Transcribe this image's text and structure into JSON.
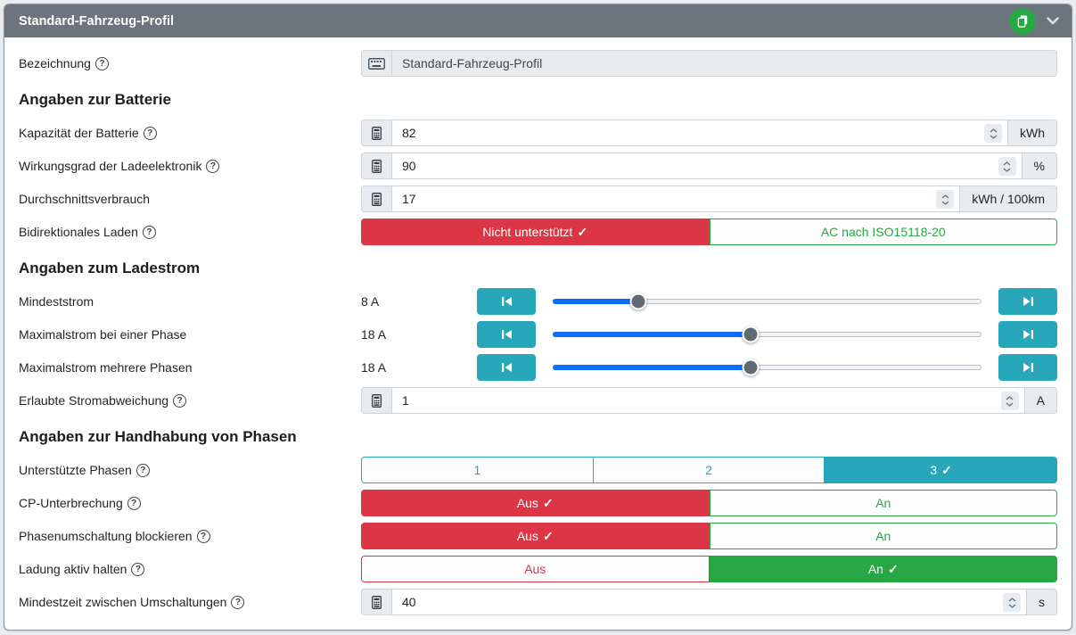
{
  "header": {
    "title": "Standard-Fahrzeug-Profil"
  },
  "glyphs": {
    "check": "✓",
    "help": "?"
  },
  "sections": {
    "batterie": "Angaben zur Batterie",
    "ladestrom": "Angaben zum Ladestrom",
    "phasen": "Angaben zur Handhabung von Phasen"
  },
  "rows": {
    "bezeichnung": {
      "label": "Bezeichnung",
      "value": "Standard-Fahrzeug-Profil"
    },
    "kapazitaet": {
      "label": "Kapazität der Batterie",
      "value": "82",
      "unit": "kWh"
    },
    "wirkungsgrad": {
      "label": "Wirkungsgrad der Ladeelektronik",
      "value": "90",
      "unit": "%"
    },
    "verbrauch": {
      "label": "Durchschnittsverbrauch",
      "value": "17",
      "unit": "kWh / 100km"
    },
    "bidi": {
      "label": "Bidirektionales Laden",
      "off_label": "Nicht unterstützt",
      "on_label": "AC nach ISO15118-20",
      "selected": "Nicht unterstützt"
    },
    "mindeststrom": {
      "label": "Mindeststrom",
      "display": "8 A",
      "value": 8,
      "min": 6,
      "max": 16
    },
    "max_eine_phase": {
      "label": "Maximalstrom bei einer Phase",
      "display": "18 A",
      "value": 18,
      "min": 6,
      "max": 32
    },
    "max_mehrere_phasen": {
      "label": "Maximalstrom mehrere Phasen",
      "display": "18 A",
      "value": 18,
      "min": 6,
      "max": 32
    },
    "abweichung": {
      "label": "Erlaubte Stromabweichung",
      "value": "1",
      "unit": "A"
    },
    "phasen": {
      "label": "Unterstützte Phasen",
      "options": [
        "1",
        "2",
        "3"
      ],
      "selected": "3"
    },
    "cp": {
      "label": "CP-Unterbrechung",
      "off_label": "Aus",
      "on_label": "An",
      "selected": "Aus"
    },
    "blockieren": {
      "label": "Phasenumschaltung blockieren",
      "off_label": "Aus",
      "on_label": "An",
      "selected": "Aus"
    },
    "aktiv_halten": {
      "label": "Ladung aktiv halten",
      "off_label": "Aus",
      "on_label": "An",
      "selected": "An"
    },
    "mindestzeit": {
      "label": "Mindestzeit zwischen Umschaltungen",
      "value": "40",
      "unit": "s"
    }
  },
  "colors": {
    "header_bg": "#6c757d",
    "danger": "#dc3545",
    "success": "#28a745",
    "teal": "#29a7ba",
    "slider_blue": "#0d6efd"
  }
}
